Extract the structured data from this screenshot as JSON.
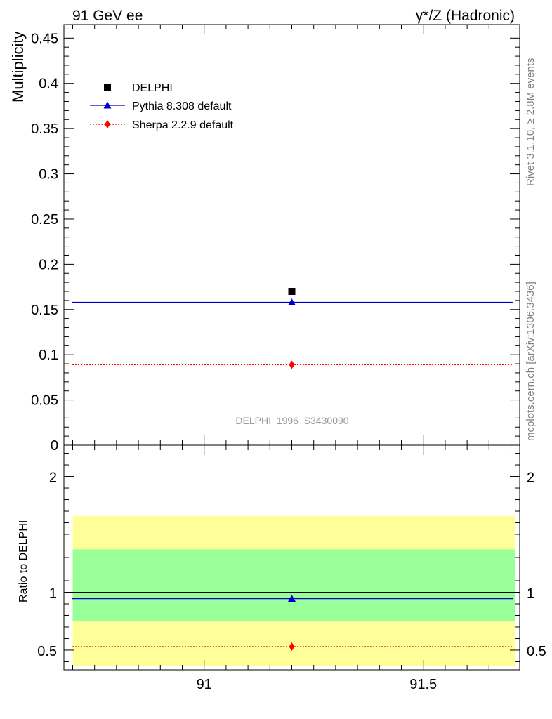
{
  "header": {
    "left": "91 GeV ee",
    "right": "γ*/Z (Hadronic)"
  },
  "side_labels": {
    "rivet": "Rivet 3.1.10, ≥ 2.8M events",
    "mcplots": "mcplots.cern.ch [arXiv:1306.3436]"
  },
  "watermark": "DELPHI_1996_S3430090",
  "colors": {
    "data": "#000000",
    "pythia": "#0000cc",
    "sherpa": "#ff0000",
    "band_outer": "#ffff99",
    "band_inner": "#99ff99"
  },
  "chart_data": [
    {
      "type": "scatter",
      "panel": "main",
      "ylabel": "Multiplicity",
      "xlim": [
        90.68,
        91.72
      ],
      "ylim": [
        0,
        0.465
      ],
      "yticks": [
        "0",
        "0.05",
        "0.1",
        "0.15",
        "0.2",
        "0.25",
        "0.3",
        "0.35",
        "0.4",
        "0.45"
      ],
      "legend_position": "top-left",
      "series": [
        {
          "name": "DELPHI",
          "x": [
            91.2
          ],
          "y": [
            0.17
          ],
          "marker": "square"
        },
        {
          "name": "Pythia 8.308 default",
          "x": [
            91.2
          ],
          "y": [
            0.158
          ],
          "marker": "triangle",
          "line": "solid"
        },
        {
          "name": "Sherpa 2.2.9 default",
          "x": [
            91.2
          ],
          "y": [
            0.089
          ],
          "marker": "diamond",
          "line": "dotted"
        }
      ]
    },
    {
      "type": "line",
      "panel": "ratio",
      "ylabel": "Ratio to DELPHI",
      "xlim": [
        90.68,
        91.72
      ],
      "ylim": [
        0.33,
        2.27
      ],
      "xticks": [
        "91",
        "91.5"
      ],
      "yticks": [
        "0.5",
        "1",
        "2"
      ],
      "reference": 1.0,
      "bands": {
        "inner": [
          0.75,
          1.37
        ],
        "outer": [
          0.36,
          1.66
        ],
        "x_range": [
          90.7,
          91.71
        ]
      },
      "series": [
        {
          "name": "Pythia 8.308 default",
          "x": [
            91.2
          ],
          "y": [
            0.945
          ]
        },
        {
          "name": "Sherpa 2.2.9 default",
          "x": [
            91.2
          ],
          "y": [
            0.53
          ]
        }
      ]
    }
  ]
}
